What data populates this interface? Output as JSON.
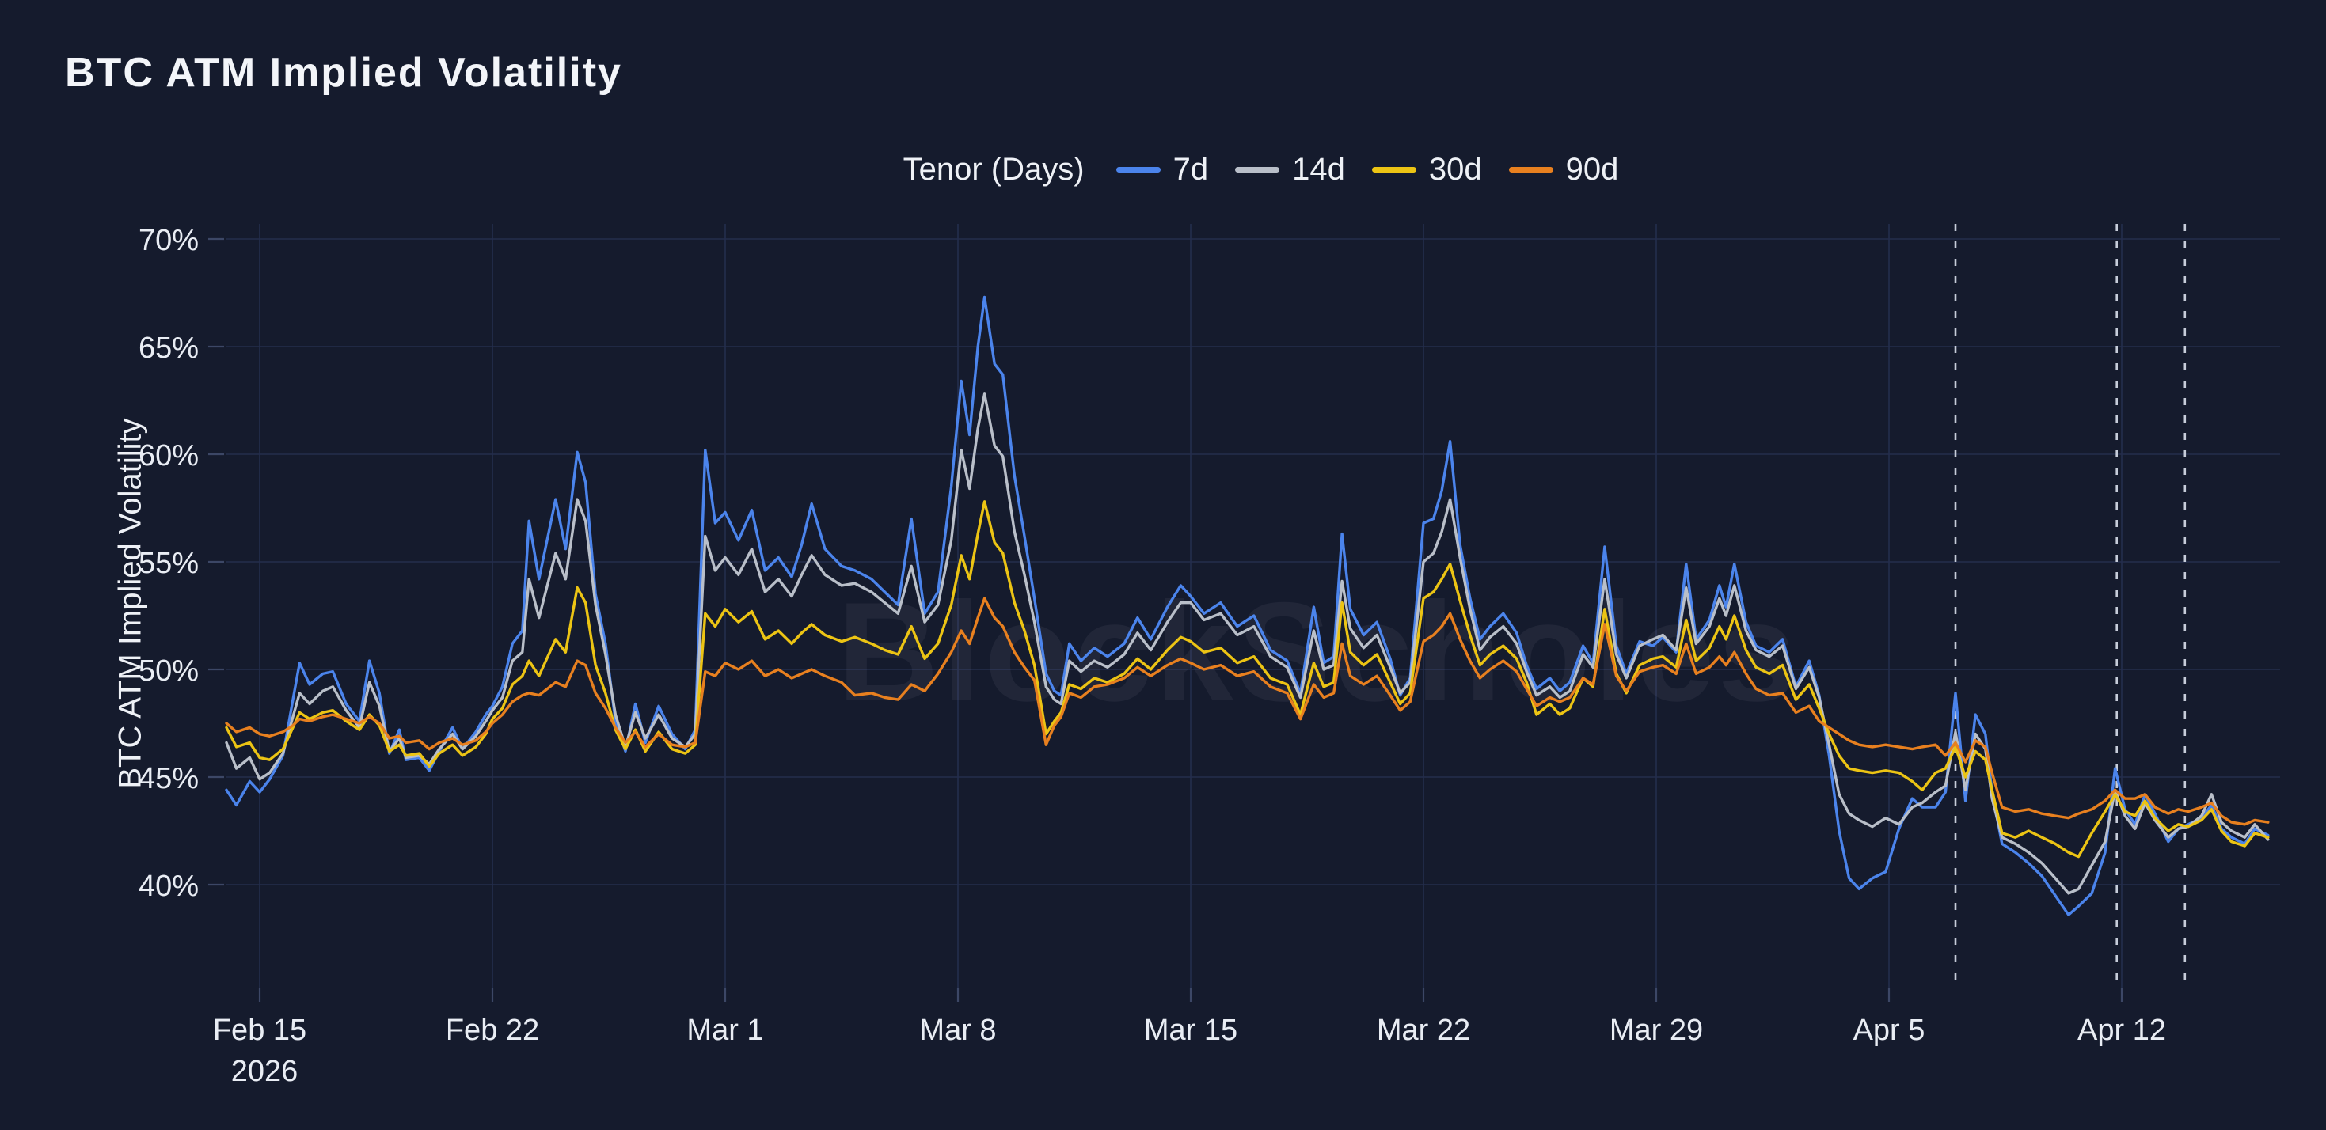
{
  "page": {
    "title": "BTC ATM Implied Volatility",
    "background_color": "#151b2d"
  },
  "chart_data": {
    "type": "line",
    "title": "BTC ATM Implied Volatility",
    "ylabel": "BTC ATM Implied Volatility",
    "legend_title": "Tenor (Days)",
    "legend_position": "top-center",
    "watermark": "BlockScholes",
    "grid": true,
    "y_axis": {
      "ticks": [
        70,
        65,
        60,
        55,
        50,
        45,
        40
      ],
      "suffix": "%",
      "range_pct": [
        35.3,
        70.7
      ]
    },
    "x_axis": {
      "unit": "days since Feb 15, 2026",
      "range_days": [
        -1.0,
        60.8
      ],
      "ticks": [
        {
          "day": 0,
          "label": "Feb 15",
          "sublabel": "2026"
        },
        {
          "day": 7,
          "label": "Feb 22"
        },
        {
          "day": 14,
          "label": "Mar 1"
        },
        {
          "day": 21,
          "label": "Mar 8"
        },
        {
          "day": 28,
          "label": "Mar 15"
        },
        {
          "day": 35,
          "label": "Mar 22"
        },
        {
          "day": 42,
          "label": "Mar 29"
        },
        {
          "day": 49,
          "label": "Apr 5"
        },
        {
          "day": 56,
          "label": "Apr 12"
        }
      ]
    },
    "event_lines": [
      {
        "day": 51.0
      },
      {
        "day": 55.85
      },
      {
        "day": 57.9
      }
    ],
    "x": [
      -1.0,
      -0.7,
      -0.3,
      0.0,
      0.3,
      0.7,
      1.0,
      1.2,
      1.5,
      1.9,
      2.2,
      2.6,
      3.0,
      3.3,
      3.6,
      3.9,
      4.2,
      4.4,
      4.8,
      5.1,
      5.4,
      5.8,
      6.1,
      6.5,
      6.8,
      7.0,
      7.3,
      7.6,
      7.9,
      8.1,
      8.4,
      8.9,
      9.2,
      9.55,
      9.8,
      10.1,
      10.4,
      10.7,
      11.0,
      11.3,
      11.6,
      12.0,
      12.4,
      12.8,
      13.1,
      13.4,
      13.7,
      14.0,
      14.4,
      14.8,
      15.2,
      15.6,
      16.0,
      16.3,
      16.6,
      17.0,
      17.5,
      17.9,
      18.4,
      18.8,
      19.2,
      19.6,
      20.0,
      20.4,
      20.8,
      21.1,
      21.35,
      21.6,
      21.8,
      22.1,
      22.35,
      22.7,
      23.0,
      23.3,
      23.65,
      23.9,
      24.1,
      24.35,
      24.7,
      25.1,
      25.5,
      26.0,
      26.4,
      26.8,
      27.3,
      27.7,
      28.0,
      28.4,
      28.9,
      29.4,
      29.9,
      30.4,
      30.9,
      31.3,
      31.7,
      32.0,
      32.3,
      32.55,
      32.8,
      33.2,
      33.6,
      34.0,
      34.3,
      34.6,
      35.0,
      35.3,
      35.55,
      35.8,
      36.1,
      36.4,
      36.7,
      37.0,
      37.4,
      37.8,
      38.1,
      38.4,
      38.8,
      39.1,
      39.4,
      39.8,
      40.1,
      40.45,
      40.8,
      41.1,
      41.5,
      41.9,
      42.2,
      42.6,
      42.9,
      43.2,
      43.6,
      43.9,
      44.1,
      44.35,
      44.7,
      45.0,
      45.4,
      45.8,
      46.2,
      46.6,
      46.9,
      47.2,
      47.5,
      47.8,
      48.1,
      48.5,
      48.9,
      49.3,
      49.7,
      50.0,
      50.4,
      50.7,
      51.0,
      51.3,
      51.6,
      51.9,
      52.1,
      52.4,
      52.8,
      53.2,
      53.6,
      54.0,
      54.4,
      54.7,
      55.1,
      55.5,
      55.8,
      56.1,
      56.4,
      56.7,
      57.0,
      57.4,
      57.7,
      58.0,
      58.4,
      58.7,
      59.0,
      59.3,
      59.7,
      60.0,
      60.4
    ],
    "series": [
      {
        "name": "7d",
        "color": "#4b84ec",
        "values": [
          44.4,
          43.7,
          44.8,
          44.3,
          44.9,
          46.0,
          48.6,
          50.3,
          49.3,
          49.8,
          49.9,
          48.4,
          47.6,
          50.4,
          48.9,
          46.1,
          47.2,
          45.8,
          45.9,
          45.3,
          46.2,
          47.3,
          46.3,
          47.1,
          47.9,
          48.3,
          49.2,
          51.2,
          51.8,
          56.9,
          54.2,
          57.9,
          55.6,
          60.1,
          58.7,
          53.5,
          51.2,
          47.6,
          46.2,
          48.4,
          46.6,
          48.3,
          47.0,
          46.3,
          47.2,
          60.2,
          56.8,
          57.3,
          56.0,
          57.4,
          54.6,
          55.2,
          54.3,
          55.8,
          57.7,
          55.6,
          54.8,
          54.6,
          54.2,
          53.6,
          53.0,
          57.0,
          52.6,
          53.6,
          58.5,
          63.4,
          60.9,
          65.0,
          67.3,
          64.2,
          63.7,
          59.0,
          56.2,
          53.3,
          49.8,
          49.0,
          48.8,
          51.2,
          50.4,
          51.0,
          50.6,
          51.2,
          52.4,
          51.4,
          52.9,
          53.9,
          53.4,
          52.6,
          53.1,
          52.0,
          52.5,
          50.9,
          50.4,
          48.9,
          52.9,
          50.3,
          50.6,
          56.3,
          52.8,
          51.6,
          52.2,
          50.5,
          48.8,
          49.6,
          56.8,
          57.0,
          58.3,
          60.6,
          55.8,
          53.3,
          51.4,
          52.0,
          52.6,
          51.7,
          50.2,
          49.1,
          49.6,
          49.0,
          49.4,
          51.1,
          50.3,
          55.7,
          51.1,
          49.8,
          51.3,
          51.1,
          51.5,
          50.8,
          54.9,
          51.4,
          52.3,
          53.9,
          52.9,
          54.9,
          52.2,
          51.1,
          50.8,
          51.4,
          49.2,
          50.4,
          48.8,
          46.0,
          42.5,
          40.3,
          39.8,
          40.3,
          40.6,
          42.6,
          44.0,
          43.6,
          43.6,
          44.3,
          48.9,
          43.9,
          47.9,
          47.0,
          44.3,
          41.9,
          41.5,
          41.0,
          40.4,
          39.5,
          38.6,
          39.0,
          39.6,
          41.5,
          45.4,
          43.5,
          42.8,
          44.2,
          43.3,
          42.0,
          42.6,
          42.8,
          43.1,
          43.7,
          42.6,
          42.2,
          41.9,
          42.6,
          42.3
        ]
      },
      {
        "name": "14d",
        "color": "#b9bfc9",
        "values": [
          46.6,
          45.4,
          45.9,
          44.9,
          45.2,
          46.1,
          47.8,
          48.9,
          48.4,
          49.0,
          49.2,
          48.1,
          47.3,
          49.4,
          48.3,
          46.2,
          46.8,
          45.9,
          46.0,
          45.6,
          46.3,
          47.0,
          46.3,
          46.9,
          47.6,
          48.1,
          48.7,
          50.4,
          50.8,
          54.2,
          52.4,
          55.4,
          54.2,
          57.9,
          56.9,
          53.0,
          50.7,
          47.9,
          46.4,
          48.0,
          46.8,
          47.9,
          46.8,
          46.4,
          47.0,
          56.2,
          54.6,
          55.2,
          54.4,
          55.6,
          53.6,
          54.2,
          53.4,
          54.4,
          55.3,
          54.4,
          53.9,
          54.0,
          53.6,
          53.1,
          52.6,
          54.8,
          52.2,
          53.0,
          56.0,
          60.2,
          58.4,
          61.2,
          62.8,
          60.4,
          59.9,
          56.4,
          54.4,
          52.2,
          49.2,
          48.6,
          48.4,
          50.4,
          49.9,
          50.4,
          50.1,
          50.7,
          51.7,
          50.9,
          52.2,
          53.1,
          53.1,
          52.3,
          52.6,
          51.6,
          52.0,
          50.6,
          50.1,
          48.7,
          51.8,
          50.0,
          50.2,
          54.1,
          51.9,
          51.0,
          51.6,
          50.1,
          48.9,
          49.4,
          55.0,
          55.4,
          56.4,
          57.9,
          55.2,
          52.8,
          50.9,
          51.5,
          52.0,
          51.2,
          49.9,
          48.8,
          49.2,
          48.7,
          49.0,
          50.7,
          50.1,
          54.2,
          50.7,
          49.6,
          51.1,
          51.4,
          51.6,
          50.9,
          53.8,
          51.2,
          52.0,
          53.3,
          52.5,
          53.9,
          51.8,
          50.9,
          50.6,
          51.1,
          49.1,
          50.1,
          48.7,
          46.5,
          44.2,
          43.3,
          43.0,
          42.7,
          43.1,
          42.8,
          43.6,
          43.8,
          44.3,
          44.6,
          47.1,
          44.4,
          47.0,
          46.3,
          44.0,
          42.2,
          41.9,
          41.5,
          41.0,
          40.3,
          39.6,
          39.8,
          40.9,
          42.0,
          44.4,
          43.2,
          42.6,
          43.8,
          43.0,
          42.2,
          42.6,
          42.7,
          43.2,
          44.2,
          42.9,
          42.5,
          42.2,
          42.8,
          42.1
        ]
      },
      {
        "name": "30d",
        "color": "#ecc414",
        "values": [
          47.3,
          46.4,
          46.6,
          45.9,
          45.8,
          46.3,
          47.3,
          48.0,
          47.7,
          48.0,
          48.1,
          47.6,
          47.2,
          47.9,
          47.4,
          46.2,
          46.5,
          46.0,
          46.1,
          45.5,
          46.1,
          46.5,
          46.0,
          46.4,
          47.0,
          47.7,
          48.2,
          49.3,
          49.7,
          50.4,
          49.7,
          51.4,
          50.8,
          53.8,
          53.1,
          50.2,
          48.9,
          47.2,
          46.3,
          47.2,
          46.2,
          47.1,
          46.3,
          46.1,
          46.5,
          52.6,
          52.0,
          52.8,
          52.2,
          52.7,
          51.4,
          51.8,
          51.2,
          51.7,
          52.1,
          51.6,
          51.3,
          51.5,
          51.2,
          50.9,
          50.7,
          52.0,
          50.5,
          51.2,
          53.0,
          55.3,
          54.2,
          56.3,
          57.8,
          55.9,
          55.4,
          53.1,
          51.8,
          50.2,
          47.0,
          47.6,
          48.0,
          49.3,
          49.1,
          49.6,
          49.4,
          49.8,
          50.5,
          50.0,
          50.9,
          51.5,
          51.3,
          50.8,
          51.0,
          50.3,
          50.6,
          49.6,
          49.3,
          47.9,
          50.3,
          49.2,
          49.4,
          53.1,
          50.8,
          50.2,
          50.7,
          49.4,
          48.4,
          48.9,
          53.3,
          53.6,
          54.2,
          54.9,
          53.2,
          51.6,
          50.2,
          50.7,
          51.1,
          50.5,
          49.4,
          47.9,
          48.4,
          47.9,
          48.2,
          49.6,
          49.2,
          52.8,
          49.8,
          48.9,
          50.2,
          50.5,
          50.6,
          50.1,
          52.3,
          50.4,
          51.0,
          52.0,
          51.4,
          52.5,
          50.9,
          50.1,
          49.8,
          50.2,
          48.6,
          49.3,
          48.2,
          47.0,
          46.0,
          45.4,
          45.3,
          45.2,
          45.3,
          45.2,
          44.8,
          44.4,
          45.2,
          45.4,
          46.4,
          45.0,
          46.2,
          45.8,
          44.4,
          42.4,
          42.2,
          42.5,
          42.2,
          41.9,
          41.5,
          41.3,
          42.4,
          43.4,
          44.2,
          43.4,
          43.2,
          43.9,
          43.1,
          42.5,
          42.8,
          42.7,
          43.0,
          43.5,
          42.5,
          42.0,
          41.8,
          42.4,
          42.2
        ]
      },
      {
        "name": "90d",
        "color": "#e8801f",
        "values": [
          47.5,
          47.1,
          47.3,
          47.0,
          46.9,
          47.1,
          47.4,
          47.7,
          47.6,
          47.8,
          47.9,
          47.7,
          47.5,
          47.8,
          47.5,
          46.8,
          46.9,
          46.6,
          46.7,
          46.3,
          46.6,
          46.8,
          46.5,
          46.7,
          47.1,
          47.5,
          47.9,
          48.5,
          48.8,
          48.9,
          48.8,
          49.4,
          49.2,
          50.4,
          50.2,
          48.9,
          48.2,
          47.3,
          46.6,
          47.1,
          46.4,
          47.0,
          46.5,
          46.4,
          46.6,
          49.9,
          49.7,
          50.3,
          50.0,
          50.4,
          49.7,
          50.0,
          49.6,
          49.8,
          50.0,
          49.7,
          49.4,
          48.8,
          48.9,
          48.7,
          48.6,
          49.3,
          49.0,
          49.8,
          50.8,
          51.8,
          51.2,
          52.4,
          53.3,
          52.4,
          52.0,
          50.8,
          50.1,
          49.5,
          46.5,
          47.4,
          47.8,
          48.9,
          48.7,
          49.2,
          49.3,
          49.6,
          50.1,
          49.7,
          50.2,
          50.5,
          50.3,
          50.0,
          50.2,
          49.7,
          49.9,
          49.2,
          48.9,
          47.7,
          49.3,
          48.7,
          48.9,
          51.2,
          49.7,
          49.3,
          49.7,
          48.8,
          48.1,
          48.5,
          51.3,
          51.6,
          52.0,
          52.6,
          51.4,
          50.4,
          49.6,
          50.0,
          50.4,
          49.9,
          49.1,
          48.3,
          48.7,
          48.5,
          48.7,
          49.6,
          49.3,
          52.1,
          49.7,
          49.0,
          49.9,
          50.1,
          50.2,
          49.8,
          51.2,
          49.8,
          50.1,
          50.6,
          50.2,
          50.8,
          49.8,
          49.1,
          48.8,
          48.9,
          48.0,
          48.3,
          47.6,
          47.3,
          47.0,
          46.7,
          46.5,
          46.4,
          46.5,
          46.4,
          46.3,
          46.4,
          46.5,
          46.0,
          46.6,
          45.7,
          46.7,
          46.4,
          45.2,
          43.6,
          43.4,
          43.5,
          43.3,
          43.2,
          43.1,
          43.3,
          43.5,
          43.9,
          44.4,
          44.0,
          44.0,
          44.2,
          43.6,
          43.3,
          43.5,
          43.4,
          43.6,
          43.8,
          43.2,
          42.9,
          42.8,
          43.0,
          42.9
        ]
      }
    ]
  }
}
